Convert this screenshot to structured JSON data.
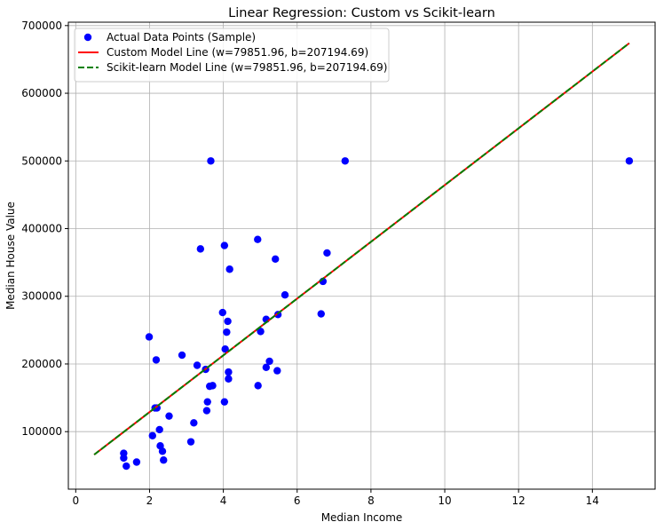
{
  "chart_data": {
    "type": "scatter",
    "title": "Linear Regression: Custom vs Scikit-learn",
    "xlabel": "Median Income",
    "ylabel": "Median House Value",
    "xlim": [
      -0.2,
      15.7
    ],
    "ylim": [
      15000,
      705000
    ],
    "xticks": [
      0,
      2,
      4,
      6,
      8,
      10,
      12,
      14
    ],
    "xtick_labels": [
      "0",
      "2",
      "4",
      "6",
      "8",
      "10",
      "12",
      "14"
    ],
    "yticks": [
      100000,
      200000,
      300000,
      400000,
      500000,
      600000,
      700000
    ],
    "ytick_labels": [
      "100000",
      "200000",
      "300000",
      "400000",
      "500000",
      "600000",
      "700000"
    ],
    "grid": true,
    "legend_position": "top-left",
    "series": [
      {
        "name": "Actual Data Points (Sample)",
        "kind": "scatter",
        "color": "#0000ff",
        "points": [
          [
            1.3,
            68000
          ],
          [
            1.3,
            61000
          ],
          [
            1.37,
            49000
          ],
          [
            1.65,
            55000
          ],
          [
            1.99,
            240000
          ],
          [
            2.08,
            94000
          ],
          [
            2.15,
            135000
          ],
          [
            2.18,
            206000
          ],
          [
            2.2,
            135000
          ],
          [
            2.27,
            103000
          ],
          [
            2.29,
            79000
          ],
          [
            2.35,
            71000
          ],
          [
            2.38,
            58000
          ],
          [
            2.53,
            123000
          ],
          [
            2.88,
            213000
          ],
          [
            3.12,
            85000
          ],
          [
            3.2,
            113000
          ],
          [
            3.29,
            198000
          ],
          [
            3.38,
            370000
          ],
          [
            3.52,
            192000
          ],
          [
            3.55,
            131000
          ],
          [
            3.57,
            144000
          ],
          [
            3.63,
            167000
          ],
          [
            3.66,
            500000
          ],
          [
            3.71,
            168000
          ],
          [
            3.98,
            276000
          ],
          [
            4.03,
            375000
          ],
          [
            4.03,
            144000
          ],
          [
            4.05,
            222000
          ],
          [
            4.09,
            247000
          ],
          [
            4.12,
            263000
          ],
          [
            4.14,
            188000
          ],
          [
            4.14,
            178000
          ],
          [
            4.17,
            340000
          ],
          [
            4.93,
            384000
          ],
          [
            4.94,
            168000
          ],
          [
            5.01,
            248000
          ],
          [
            5.16,
            266000
          ],
          [
            5.16,
            195000
          ],
          [
            5.25,
            204000
          ],
          [
            5.41,
            355000
          ],
          [
            5.46,
            190000
          ],
          [
            5.48,
            273000
          ],
          [
            5.67,
            302000
          ],
          [
            6.65,
            274000
          ],
          [
            6.7,
            322000
          ],
          [
            6.81,
            364000
          ],
          [
            7.3,
            500000
          ],
          [
            15.0,
            500000
          ]
        ]
      },
      {
        "name": "Custom Model Line (w=79851.96, b=207194.69)",
        "kind": "line",
        "color": "#ff0000",
        "dash": false,
        "x": [
          0.5,
          15.0
        ],
        "y": [
          66000,
          674000
        ]
      },
      {
        "name": "Scikit-learn Model Line (w=79851.96, b=207194.69)",
        "kind": "line",
        "color": "#008000",
        "dash": true,
        "x": [
          0.5,
          15.0
        ],
        "y": [
          66000,
          674000
        ]
      }
    ]
  }
}
